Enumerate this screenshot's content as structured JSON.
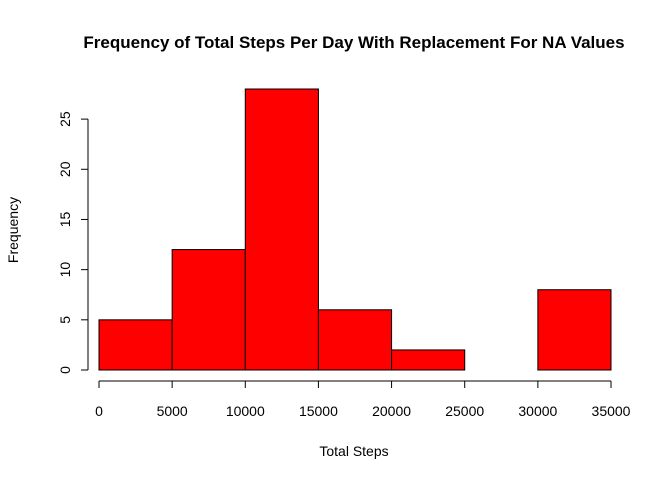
{
  "chart_data": {
    "type": "bar",
    "title": "Frequency of Total Steps Per Day With Replacement For NA Values",
    "xlabel": "Total Steps",
    "ylabel": "Frequency",
    "bins": [
      {
        "start": 0,
        "end": 5000,
        "value": 5
      },
      {
        "start": 5000,
        "end": 10000,
        "value": 12
      },
      {
        "start": 10000,
        "end": 15000,
        "value": 28
      },
      {
        "start": 15000,
        "end": 20000,
        "value": 6
      },
      {
        "start": 20000,
        "end": 25000,
        "value": 2
      },
      {
        "start": 25000,
        "end": 30000,
        "value": 0
      },
      {
        "start": 30000,
        "end": 35000,
        "value": 8
      }
    ],
    "xlim": [
      0,
      35000
    ],
    "ylim": [
      0,
      28
    ],
    "x_ticks": [
      "0",
      "5000",
      "10000",
      "15000",
      "20000",
      "25000",
      "30000",
      "35000"
    ],
    "y_ticks": [
      "0",
      "5",
      "10",
      "15",
      "20",
      "25"
    ],
    "bar_color": "#ff0000",
    "grid": false
  }
}
